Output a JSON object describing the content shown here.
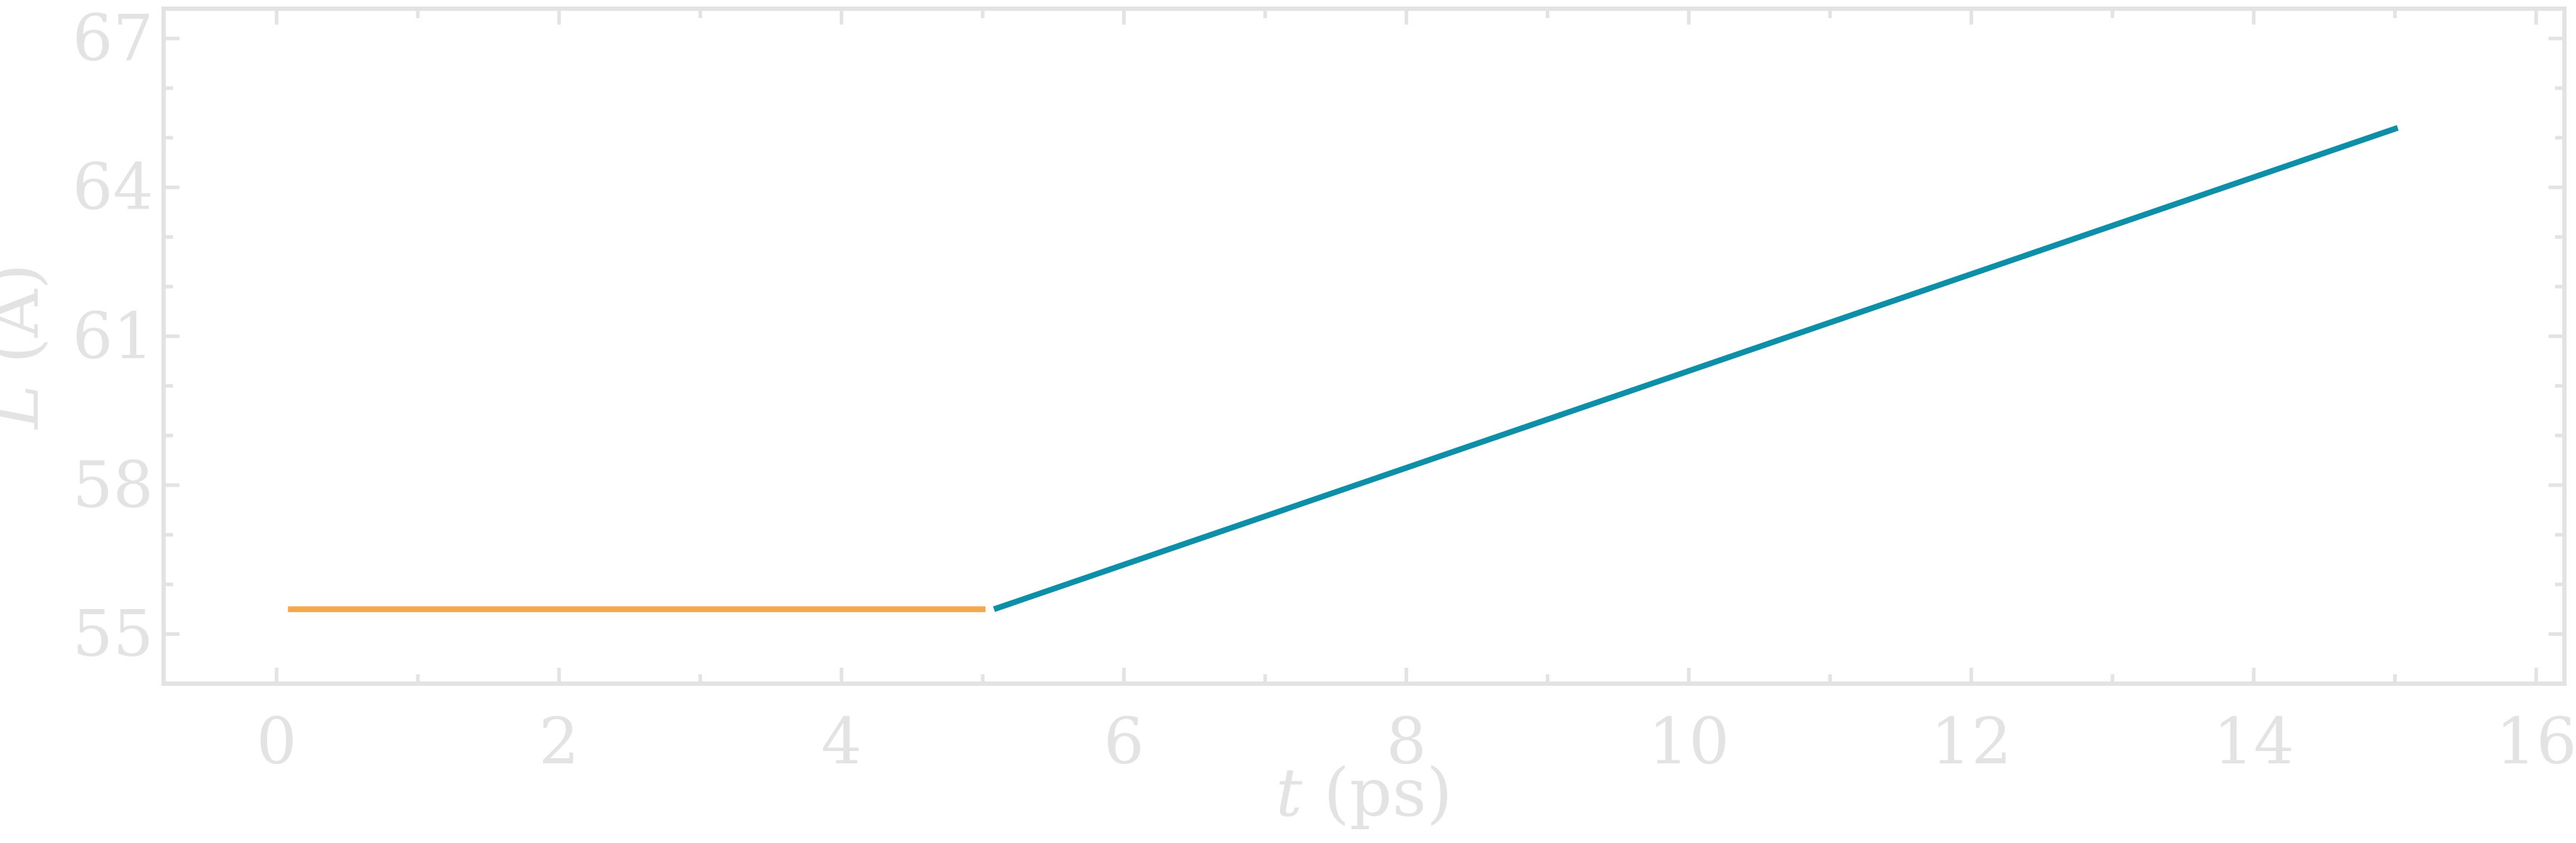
{
  "chart_data": {
    "type": "line",
    "title": "",
    "xlabel_var": "t",
    "xlabel_unit": " (ps)",
    "ylabel_var": "L",
    "ylabel_unit": " (Å)",
    "xlim": [
      -0.8,
      16.2
    ],
    "ylim": [
      54.0,
      67.6
    ],
    "x_ticks": [
      0,
      2,
      4,
      6,
      8,
      10,
      12,
      14,
      16
    ],
    "x_minor_ticks": [
      1,
      3,
      5,
      7,
      9,
      11,
      13,
      15
    ],
    "y_ticks": [
      55,
      58,
      61,
      64,
      67
    ],
    "y_minor_ticks": [
      56,
      57,
      59,
      60,
      62,
      63,
      65,
      66
    ],
    "grid": false,
    "legend": "none",
    "series": [
      {
        "color": "#f5a84a",
        "x": [
          0.08,
          5.02
        ],
        "y": [
          55.5,
          55.5
        ]
      },
      {
        "color": "#0e8fa8",
        "x": [
          5.08,
          15.02
        ],
        "y": [
          55.5,
          65.2
        ]
      }
    ]
  },
  "style": {
    "axis_color": "#e3e3e3",
    "background": "#ffffff"
  }
}
